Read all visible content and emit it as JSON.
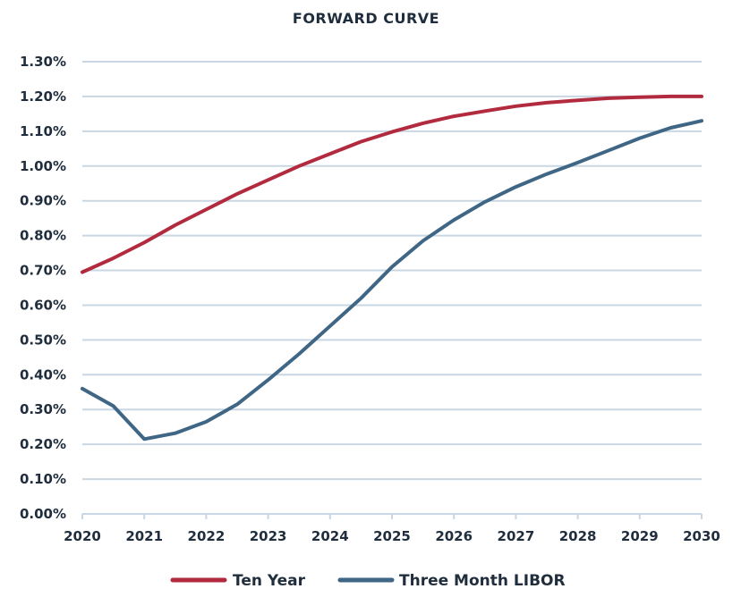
{
  "chart_data": {
    "type": "line",
    "title": "FORWARD CURVE",
    "xlabel": "",
    "ylabel": "",
    "x_ticks": [
      "2020",
      "2021",
      "2022",
      "2023",
      "2024",
      "2025",
      "2026",
      "2027",
      "2028",
      "2029",
      "2030"
    ],
    "y_ticks": [
      "0.00%",
      "0.10%",
      "0.20%",
      "0.30%",
      "0.40%",
      "0.50%",
      "0.60%",
      "0.70%",
      "0.80%",
      "0.90%",
      "1.00%",
      "1.10%",
      "1.20%",
      "1.30%"
    ],
    "xlim": [
      2020,
      2030
    ],
    "ylim": [
      0,
      1.3
    ],
    "grid": true,
    "legend_position": "bottom",
    "series": [
      {
        "name": "Ten Year",
        "color": "#b22a3e",
        "x": [
          2020,
          2020.5,
          2021,
          2021.5,
          2022,
          2022.5,
          2023,
          2023.5,
          2024,
          2024.5,
          2025,
          2025.5,
          2026,
          2026.5,
          2027,
          2027.5,
          2028,
          2028.5,
          2029,
          2029.5,
          2030
        ],
        "y": [
          0.695,
          0.735,
          0.78,
          0.83,
          0.875,
          0.92,
          0.96,
          1.0,
          1.035,
          1.07,
          1.098,
          1.123,
          1.143,
          1.158,
          1.172,
          1.182,
          1.189,
          1.195,
          1.198,
          1.2,
          1.2
        ]
      },
      {
        "name": "Three Month LIBOR",
        "color": "#3f6685",
        "x": [
          2020,
          2020.5,
          2021,
          2021.5,
          2022,
          2022.5,
          2023,
          2023.5,
          2024,
          2024.5,
          2025,
          2025.5,
          2026,
          2026.5,
          2027,
          2027.5,
          2028,
          2028.5,
          2029,
          2029.5,
          2030
        ],
        "y": [
          0.36,
          0.31,
          0.215,
          0.232,
          0.265,
          0.315,
          0.385,
          0.46,
          0.54,
          0.62,
          0.71,
          0.785,
          0.845,
          0.897,
          0.94,
          0.977,
          1.01,
          1.045,
          1.08,
          1.11,
          1.13
        ]
      }
    ]
  }
}
